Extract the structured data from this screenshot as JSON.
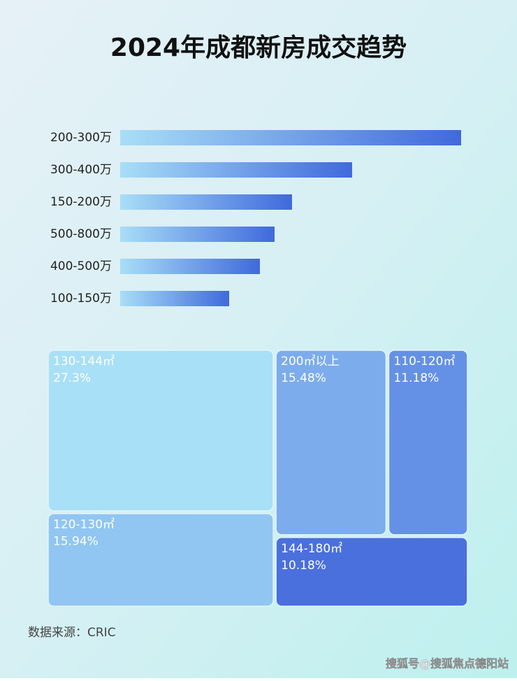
{
  "chart_data": [
    {
      "type": "bar",
      "orientation": "horizontal",
      "title": "2024年成都新房成交趋势",
      "categories": [
        "200-300万",
        "300-400万",
        "150-200万",
        "500-800万",
        "400-500万",
        "100-150万"
      ],
      "values": [
        488,
        332,
        246,
        221,
        200,
        156
      ],
      "xlim": [
        0,
        488
      ],
      "color": "#4069dc"
    },
    {
      "type": "treemap",
      "categories": [
        "130-144㎡",
        "120-130㎡",
        "200㎡以上",
        "110-120㎡",
        "144-180㎡"
      ],
      "values": [
        27.3,
        15.94,
        15.48,
        11.18,
        10.18
      ],
      "value_labels": [
        "27.3%",
        "15.94%",
        "15.48%",
        "11.18%",
        "10.18%"
      ],
      "colors": [
        "#a8e0f7",
        "#90c6f1",
        "#7caceb",
        "#6491e5",
        "#4a70dd"
      ]
    }
  ],
  "source": "数据来源：CRIC",
  "watermark": "搜狐号@搜狐焦点德阳站"
}
